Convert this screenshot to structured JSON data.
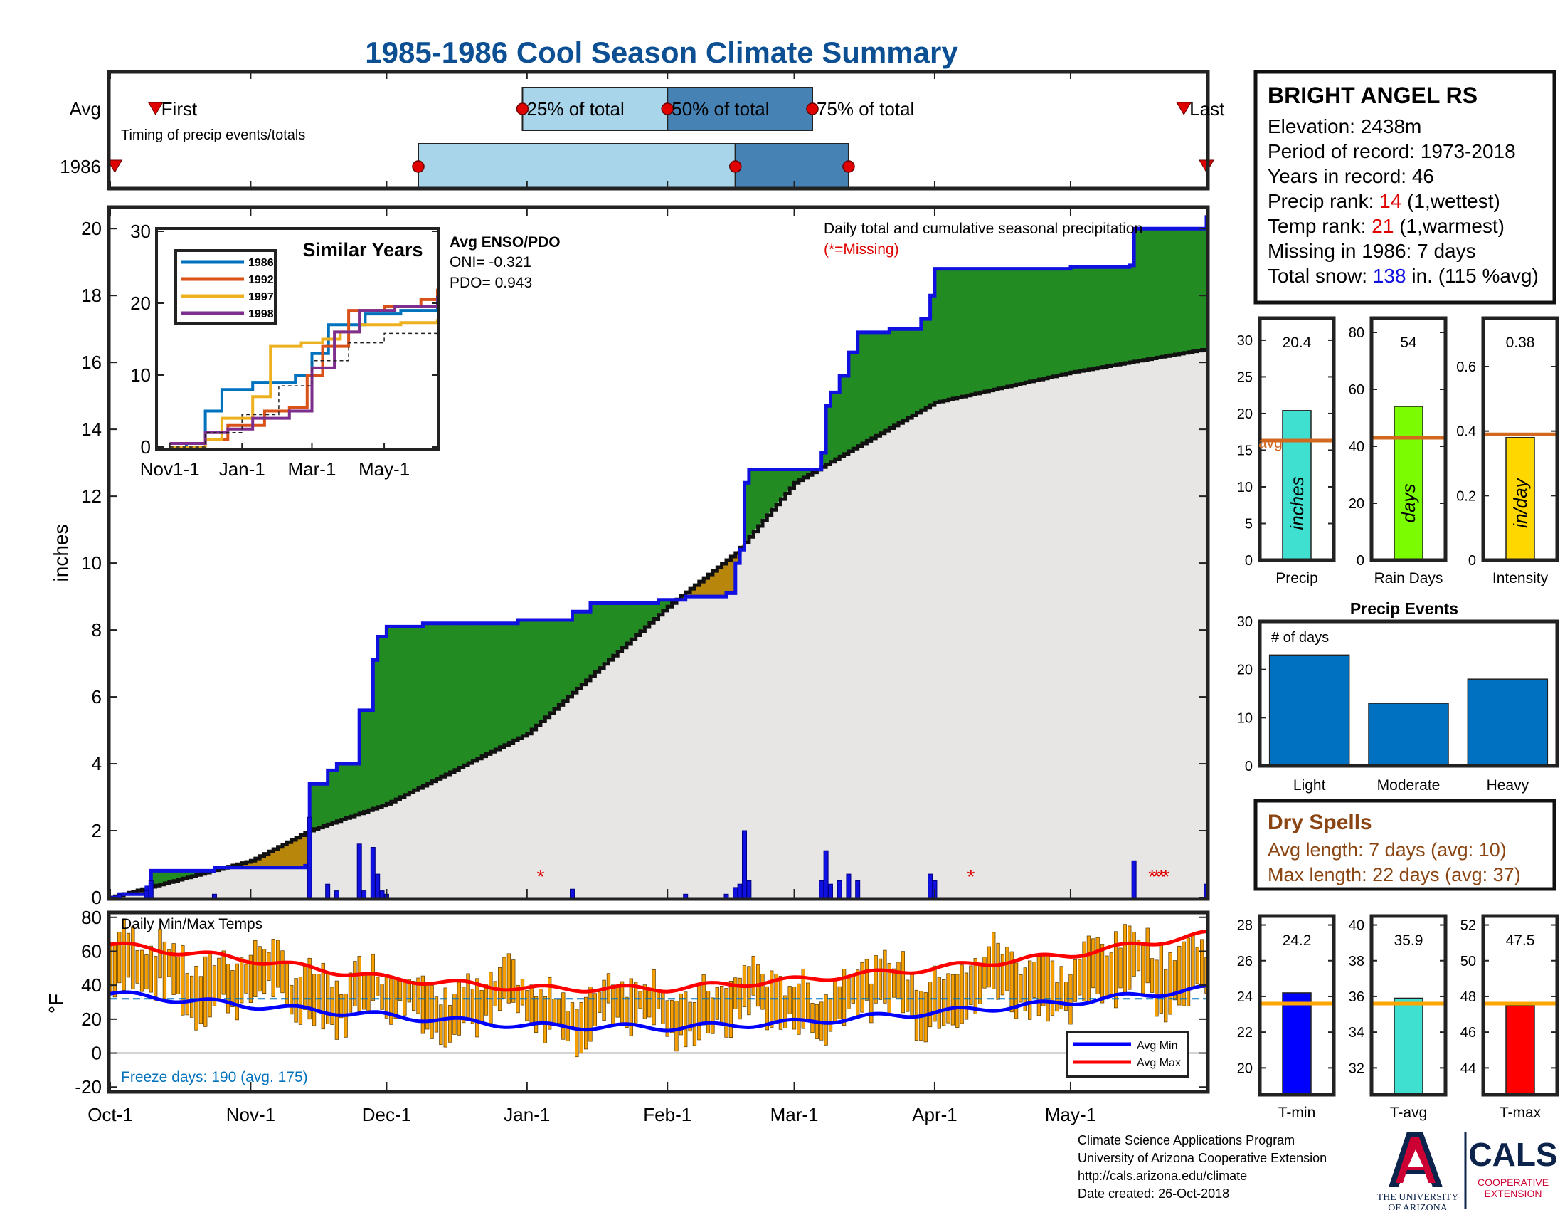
{
  "title": "1985-1986 Cool Season Climate Summary",
  "colors": {
    "title": "#0d4f93",
    "blue_line": "#1010e0",
    "green": "#228b22",
    "brown": "#b8860b",
    "gray_fill": "#e8e6e4",
    "q_light": "#a9d5ea",
    "q_dark": "#4682b4",
    "red_marker": "#e00000",
    "avg_line": "#d2691e",
    "precip_bar": "#40e0d0",
    "rain_bar": "#7cfc00",
    "intensity_bar": "#ffd700",
    "event_bar": "#0070c0",
    "temp_bar": "#f5a000",
    "tmin_bar": "#0000ff",
    "tavg_bar": "#40e0d0",
    "tmax_bar": "#ff0000",
    "dry_spell": "#8b4513",
    "ua_red": "#cc0033",
    "ua_navy": "#0c234b"
  },
  "timing": {
    "row_avg_label": "Avg",
    "row_year_label": "1986",
    "first_label": "First",
    "last_label": "Last",
    "subtitle": "Timing of precip events/totals",
    "p25_label": "25% of total",
    "p50_label": "50% of total",
    "p75_label": "75% of total",
    "avg": {
      "first": "1985-10-11",
      "p25": "1985-12-31",
      "p50": "1986-02-01",
      "p75": "1986-03-05",
      "last": "1986-05-26"
    },
    "year": {
      "first": "1985-10-02",
      "p25": "1985-12-08",
      "p50": "1986-02-16",
      "p75": "1986-03-13",
      "last": "1986-05-31"
    }
  },
  "main": {
    "ylabel": "inches",
    "legend_title": "Daily total and cumulative seasonal precipitation",
    "missing_note": "(*=Missing)",
    "missing_marker": "*",
    "missing_dates": [
      "1986-01-04",
      "1986-04-09",
      "1986-05-19",
      "1986-05-20",
      "1986-05-21",
      "1986-05-22"
    ],
    "yticks": [
      "0",
      "2",
      "4",
      "6",
      "8",
      "10",
      "12",
      "14",
      "16",
      "18",
      "20"
    ]
  },
  "enso": {
    "title": "Avg ENSO/PDO",
    "oni": "ONI= -0.321",
    "pdo": "PDO= 0.943"
  },
  "inset": {
    "title": "Similar Years",
    "yticks": [
      "0",
      "10",
      "20",
      "30"
    ],
    "xticks": [
      "Nov1-1",
      "Jan-1",
      "Mar-1",
      "May-1"
    ],
    "legend": [
      "1986",
      "1992",
      "1997",
      "1998"
    ],
    "series_colors": [
      "#0072bd",
      "#d95319",
      "#edb120",
      "#7e2f8e"
    ]
  },
  "station": {
    "name": "BRIGHT ANGEL RS",
    "elevation": "Elevation: 2438m",
    "period": "Period of record: 1973-2018",
    "years": "Years in record: 46",
    "precip_rank_pre": "Precip rank: ",
    "precip_rank_val": "14",
    "precip_rank_post": " (1,wettest)",
    "temp_rank_pre": "Temp rank: ",
    "temp_rank_val": "21",
    "temp_rank_post": " (1,warmest)",
    "missing": "Missing in 1986: 7 days",
    "snow_pre": "Total snow: ",
    "snow_val": "138",
    "snow_post": " in. (115 %avg)"
  },
  "mini_precip": {
    "value_label": "20.4",
    "inner_label": "inches",
    "xlabel": "Precip",
    "avg_label": "avg",
    "yticks": [
      "0",
      "5",
      "10",
      "15",
      "20",
      "25",
      "30"
    ]
  },
  "mini_rain": {
    "value_label": "54",
    "inner_label": "days",
    "xlabel": "Rain Days",
    "yticks": [
      "0",
      "20",
      "40",
      "60",
      "80"
    ]
  },
  "mini_intensity": {
    "value_label": "0.38",
    "inner_label": "in/day",
    "xlabel": "Intensity",
    "yticks": [
      "0",
      "0.2",
      "0.4",
      "0.6"
    ]
  },
  "events": {
    "title": "Precip Events",
    "ylabel": "# of days",
    "yticks": [
      "0",
      "10",
      "20",
      "30"
    ]
  },
  "dry_spells": {
    "title": "Dry Spells",
    "avg_length": "Avg length: 7 days (avg: 10)",
    "max_length": "Max length: 22 days (avg: 37)"
  },
  "temps": {
    "label": "Daily Min/Max Temps",
    "ylabel": "°F",
    "freeze": "Freeze days: 190 (avg. 175)",
    "legend_min": "Avg Min",
    "legend_max": "Avg Max",
    "yticks": [
      "-20",
      "0",
      "20",
      "40",
      "60",
      "80"
    ]
  },
  "xaxis": {
    "ticks": [
      "Oct-1",
      "Nov-1",
      "Dec-1",
      "Jan-1",
      "Feb-1",
      "Mar-1",
      "Apr-1",
      "May-1"
    ]
  },
  "mini_tmin": {
    "value_label": "24.2",
    "xlabel": "T-min",
    "yticks": [
      "20",
      "22",
      "24",
      "26",
      "28"
    ]
  },
  "mini_tavg": {
    "value_label": "35.9",
    "xlabel": "T-avg",
    "yticks": [
      "32",
      "34",
      "36",
      "38",
      "40"
    ]
  },
  "mini_tmax": {
    "value_label": "47.5",
    "xlabel": "T-max",
    "yticks": [
      "44",
      "46",
      "48",
      "50",
      "52"
    ]
  },
  "footer": {
    "line1": "Climate Science Applications Program",
    "line2": "University of Arizona Cooperative Extension",
    "line3": "http://cals.arizona.edu/climate",
    "line4": " Date created: 26-Oct-2018",
    "ua_line1": "THE UNIVERSITY",
    "ua_line2": "OF ARIZONA",
    "cals_logo": "CALS",
    "cals_line1": "COOPERATIVE",
    "cals_line2": "EXTENSION"
  },
  "chart_data": [
    {
      "type": "area",
      "title": "Daily total and cumulative seasonal precipitation",
      "ylabel": "inches",
      "ylim": [
        0,
        20.6
      ],
      "x_range": [
        "1985-10-01",
        "1986-05-31"
      ],
      "cumulative_1986": [
        {
          "x": "1985-10-01",
          "y": 0
        },
        {
          "x": "1985-10-03",
          "y": 0.1
        },
        {
          "x": "1985-10-09",
          "y": 0.3
        },
        {
          "x": "1985-10-10",
          "y": 0.8
        },
        {
          "x": "1985-10-24",
          "y": 0.9
        },
        {
          "x": "1985-11-13",
          "y": 0.95
        },
        {
          "x": "1985-11-14",
          "y": 3.4
        },
        {
          "x": "1985-11-18",
          "y": 3.8
        },
        {
          "x": "1985-11-20",
          "y": 4.0
        },
        {
          "x": "1985-11-25",
          "y": 5.6
        },
        {
          "x": "1985-11-28",
          "y": 7.1
        },
        {
          "x": "1985-11-29",
          "y": 7.8
        },
        {
          "x": "1985-12-01",
          "y": 8.1
        },
        {
          "x": "1985-12-09",
          "y": 8.2
        },
        {
          "x": "1985-12-30",
          "y": 8.3
        },
        {
          "x": "1986-01-11",
          "y": 8.55
        },
        {
          "x": "1986-01-15",
          "y": 8.8
        },
        {
          "x": "1986-01-30",
          "y": 8.9
        },
        {
          "x": "1986-02-05",
          "y": 9.0
        },
        {
          "x": "1986-02-14",
          "y": 9.1
        },
        {
          "x": "1986-02-16",
          "y": 10.0
        },
        {
          "x": "1986-02-17",
          "y": 10.4
        },
        {
          "x": "1986-02-18",
          "y": 12.4
        },
        {
          "x": "1986-02-19",
          "y": 12.8
        },
        {
          "x": "1986-03-07",
          "y": 13.3
        },
        {
          "x": "1986-03-08",
          "y": 14.7
        },
        {
          "x": "1986-03-09",
          "y": 15.1
        },
        {
          "x": "1986-03-11",
          "y": 15.6
        },
        {
          "x": "1986-03-13",
          "y": 16.3
        },
        {
          "x": "1986-03-15",
          "y": 16.9
        },
        {
          "x": "1986-03-22",
          "y": 17.0
        },
        {
          "x": "1986-03-29",
          "y": 17.3
        },
        {
          "x": "1986-03-31",
          "y": 18.0
        },
        {
          "x": "1986-04-01",
          "y": 18.8
        },
        {
          "x": "1986-05-01",
          "y": 18.85
        },
        {
          "x": "1986-05-14",
          "y": 18.9
        },
        {
          "x": "1986-05-15",
          "y": 20.0
        },
        {
          "x": "1986-05-30",
          "y": 20.0
        },
        {
          "x": "1986-05-31",
          "y": 20.4
        }
      ],
      "cumulative_avg": [
        {
          "x": "1985-10-01",
          "y": 0
        },
        {
          "x": "1985-11-01",
          "y": 1.1
        },
        {
          "x": "1985-11-14",
          "y": 2.0
        },
        {
          "x": "1985-12-01",
          "y": 2.8
        },
        {
          "x": "1986-01-01",
          "y": 4.9
        },
        {
          "x": "1986-02-01",
          "y": 8.7
        },
        {
          "x": "1986-02-16",
          "y": 10.3
        },
        {
          "x": "1986-03-01",
          "y": 12.4
        },
        {
          "x": "1986-03-15",
          "y": 13.5
        },
        {
          "x": "1986-04-01",
          "y": 14.8
        },
        {
          "x": "1986-05-01",
          "y": 15.7
        },
        {
          "x": "1986-05-31",
          "y": 16.4
        }
      ],
      "daily_precip": [
        {
          "x": "1985-10-03",
          "y": 0.1
        },
        {
          "x": "1985-10-09",
          "y": 0.2
        },
        {
          "x": "1985-10-10",
          "y": 0.5
        },
        {
          "x": "1985-10-24",
          "y": 0.1
        },
        {
          "x": "1985-11-14",
          "y": 2.4
        },
        {
          "x": "1985-11-18",
          "y": 0.4
        },
        {
          "x": "1985-11-20",
          "y": 0.2
        },
        {
          "x": "1985-11-25",
          "y": 1.6
        },
        {
          "x": "1985-11-26",
          "y": 0.2
        },
        {
          "x": "1985-11-28",
          "y": 1.5
        },
        {
          "x": "1985-11-29",
          "y": 0.7
        },
        {
          "x": "1985-11-30",
          "y": 0.2
        },
        {
          "x": "1985-12-01",
          "y": 0.1
        },
        {
          "x": "1986-01-11",
          "y": 0.25
        },
        {
          "x": "1986-02-05",
          "y": 0.1
        },
        {
          "x": "1986-02-14",
          "y": 0.1
        },
        {
          "x": "1986-02-16",
          "y": 0.3
        },
        {
          "x": "1986-02-17",
          "y": 0.4
        },
        {
          "x": "1986-02-18",
          "y": 2.0
        },
        {
          "x": "1986-02-19",
          "y": 0.5
        },
        {
          "x": "1986-03-07",
          "y": 0.5
        },
        {
          "x": "1986-03-08",
          "y": 1.4
        },
        {
          "x": "1986-03-09",
          "y": 0.4
        },
        {
          "x": "1986-03-11",
          "y": 0.5
        },
        {
          "x": "1986-03-13",
          "y": 0.7
        },
        {
          "x": "1986-03-15",
          "y": 0.5
        },
        {
          "x": "1986-03-31",
          "y": 0.7
        },
        {
          "x": "1986-04-01",
          "y": 0.5
        },
        {
          "x": "1986-05-15",
          "y": 1.1
        },
        {
          "x": "1986-05-31",
          "y": 0.4
        }
      ]
    },
    {
      "type": "line",
      "title": "Similar Years",
      "ylim": [
        0,
        30
      ],
      "x_range": [
        "1985-11-01",
        "1986-06-15"
      ],
      "series": [
        {
          "name": "1986",
          "values": [
            {
              "x": "1985-11-01",
              "y": 0
            },
            {
              "x": "1985-11-15",
              "y": 0.5
            },
            {
              "x": "1985-12-01",
              "y": 5
            },
            {
              "x": "1985-12-15",
              "y": 8
            },
            {
              "x": "1986-01-10",
              "y": 9
            },
            {
              "x": "1986-02-15",
              "y": 10
            },
            {
              "x": "1986-03-01",
              "y": 13
            },
            {
              "x": "1986-03-15",
              "y": 17
            },
            {
              "x": "1986-04-15",
              "y": 18.5
            },
            {
              "x": "1986-05-15",
              "y": 19
            },
            {
              "x": "1986-06-15",
              "y": 20
            }
          ]
        },
        {
          "name": "1992",
          "values": [
            {
              "x": "1985-11-01",
              "y": 0.5
            },
            {
              "x": "1985-12-01",
              "y": 1
            },
            {
              "x": "1985-12-20",
              "y": 3
            },
            {
              "x": "1986-01-20",
              "y": 5
            },
            {
              "x": "1986-02-10",
              "y": 5.5
            },
            {
              "x": "1986-02-25",
              "y": 10
            },
            {
              "x": "1986-03-10",
              "y": 14
            },
            {
              "x": "1986-04-01",
              "y": 19
            },
            {
              "x": "1986-05-01",
              "y": 19.5
            },
            {
              "x": "1986-06-01",
              "y": 20.5
            },
            {
              "x": "1986-06-15",
              "y": 22
            }
          ]
        },
        {
          "name": "1997",
          "values": [
            {
              "x": "1985-11-01",
              "y": 0
            },
            {
              "x": "1985-12-01",
              "y": 1
            },
            {
              "x": "1985-12-15",
              "y": 4
            },
            {
              "x": "1986-01-10",
              "y": 7
            },
            {
              "x": "1986-01-25",
              "y": 14
            },
            {
              "x": "1986-02-20",
              "y": 14.5
            },
            {
              "x": "1986-03-10",
              "y": 15
            },
            {
              "x": "1986-03-25",
              "y": 16
            },
            {
              "x": "1986-04-10",
              "y": 17
            },
            {
              "x": "1986-05-15",
              "y": 17.3
            },
            {
              "x": "1986-06-15",
              "y": 17.8
            }
          ]
        },
        {
          "name": "1998",
          "values": [
            {
              "x": "1985-11-01",
              "y": 0.5
            },
            {
              "x": "1985-12-01",
              "y": 2
            },
            {
              "x": "1985-12-20",
              "y": 2.5
            },
            {
              "x": "1986-01-10",
              "y": 4
            },
            {
              "x": "1986-02-10",
              "y": 5
            },
            {
              "x": "1986-03-01",
              "y": 11
            },
            {
              "x": "1986-03-20",
              "y": 16
            },
            {
              "x": "1986-04-10",
              "y": 19
            },
            {
              "x": "1986-05-10",
              "y": 19.5
            },
            {
              "x": "1986-06-15",
              "y": 21
            }
          ]
        },
        {
          "values": [
            {
              "x": "1985-11-01",
              "y": 0
            },
            {
              "x": "1985-12-01",
              "y": 2
            },
            {
              "x": "1986-01-01",
              "y": 4.5
            },
            {
              "x": "1986-02-01",
              "y": 8.5
            },
            {
              "x": "1986-03-01",
              "y": 12
            },
            {
              "x": "1986-04-01",
              "y": 14.5
            },
            {
              "x": "1986-05-01",
              "y": 15.8
            },
            {
              "x": "1986-06-15",
              "y": 16.6
            }
          ]
        }
      ]
    },
    {
      "type": "bar",
      "title": "",
      "categories": [
        "Precip"
      ],
      "values": [
        20.4
      ],
      "avg": 16.3,
      "ylim": [
        0,
        33
      ]
    },
    {
      "type": "bar",
      "title": "",
      "categories": [
        "Rain Days"
      ],
      "values": [
        54
      ],
      "avg": 43,
      "ylim": [
        0,
        85
      ]
    },
    {
      "type": "bar",
      "title": "",
      "categories": [
        "Intensity"
      ],
      "values": [
        0.38
      ],
      "avg": 0.39,
      "ylim": [
        0,
        0.75
      ]
    },
    {
      "type": "bar",
      "title": "Precip Events",
      "ylabel": "# of days",
      "categories": [
        "Light",
        "Moderate",
        "Heavy"
      ],
      "values": [
        23,
        13,
        18
      ],
      "ylim": [
        0,
        30
      ]
    },
    {
      "type": "bar",
      "title": "Daily Min/Max Temps",
      "ylabel": "°F",
      "ylim": [
        -22,
        82
      ],
      "freeze_line": 32,
      "avg_min": [
        {
          "x": "1985-10-01",
          "y": 35
        },
        {
          "x": "1985-11-01",
          "y": 28
        },
        {
          "x": "1985-12-01",
          "y": 22
        },
        {
          "x": "1986-01-01",
          "y": 16
        },
        {
          "x": "1986-02-01",
          "y": 15
        },
        {
          "x": "1986-03-01",
          "y": 18
        },
        {
          "x": "1986-04-01",
          "y": 24
        },
        {
          "x": "1986-05-01",
          "y": 30
        },
        {
          "x": "1986-05-31",
          "y": 38
        }
      ],
      "avg_max": [
        {
          "x": "1985-10-01",
          "y": 64
        },
        {
          "x": "1985-11-01",
          "y": 55
        },
        {
          "x": "1985-12-01",
          "y": 44
        },
        {
          "x": "1986-01-01",
          "y": 38
        },
        {
          "x": "1986-02-01",
          "y": 38
        },
        {
          "x": "1986-03-01",
          "y": 43
        },
        {
          "x": "1986-04-01",
          "y": 50
        },
        {
          "x": "1986-05-01",
          "y": 58
        },
        {
          "x": "1986-05-31",
          "y": 70
        }
      ],
      "daily_range_note": "daily min/max bars between approximately -10 and 75 °F"
    },
    {
      "type": "bar",
      "categories": [
        "T-min"
      ],
      "values": [
        24.2
      ],
      "avg": 23.6,
      "ylim": [
        18.5,
        28.5
      ]
    },
    {
      "type": "bar",
      "categories": [
        "T-avg"
      ],
      "values": [
        35.9
      ],
      "avg": 35.6,
      "ylim": [
        30.5,
        40.5
      ]
    },
    {
      "type": "bar",
      "categories": [
        "T-max"
      ],
      "values": [
        47.5
      ],
      "avg": 47.6,
      "ylim": [
        42.5,
        52.5
      ]
    }
  ]
}
